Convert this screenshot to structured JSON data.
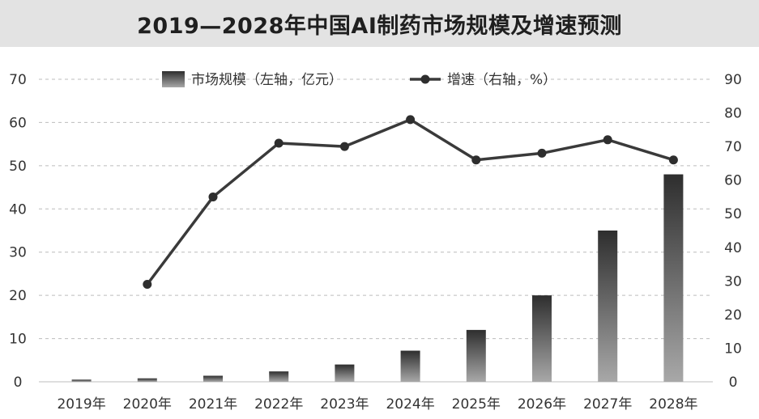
{
  "title": "2019—2028年中国AI制药市场规模及增速预测",
  "chart_data": {
    "type": "bar",
    "title": "2019—2028年中国AI制药市场规模及增速预测",
    "categories": [
      "2019年",
      "2020年",
      "2021年",
      "2022年",
      "2023年",
      "2024年",
      "2025年",
      "2026年",
      "2027年",
      "2028年"
    ],
    "series": [
      {
        "name": "市场规模（左轴，亿元）",
        "type": "bar",
        "axis": "left",
        "values": [
          0.5,
          0.8,
          1.4,
          2.4,
          4.0,
          7.2,
          12.0,
          20.0,
          35.0,
          48.0
        ]
      },
      {
        "name": "增速（右轴，%）",
        "type": "line",
        "axis": "right",
        "values": [
          null,
          29,
          55,
          71,
          70,
          78,
          66,
          68,
          72,
          66
        ]
      }
    ],
    "y_left": {
      "min": 0,
      "max": 70,
      "ticks": [
        0,
        10,
        20,
        30,
        40,
        50,
        60,
        70
      ]
    },
    "y_right": {
      "min": 0,
      "max": 90,
      "ticks": [
        0,
        10,
        20,
        30,
        40,
        50,
        60,
        70,
        80,
        90
      ]
    },
    "grid": "horizontal dashed",
    "legend": "top-center"
  }
}
